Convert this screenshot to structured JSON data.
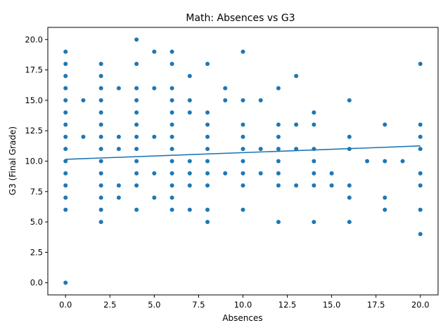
{
  "chart_data": {
    "type": "scatter",
    "title": "Math: Absences vs G3",
    "xlabel": "Absences",
    "ylabel": "G3 (Final Grade)",
    "xlim": [
      -1,
      21
    ],
    "ylim": [
      -1,
      21
    ],
    "xticks": [
      0,
      2.5,
      5,
      7.5,
      10,
      12.5,
      15,
      17.5,
      20
    ],
    "xtick_labels": [
      "0.0",
      "2.5",
      "5.0",
      "7.5",
      "10.0",
      "12.5",
      "15.0",
      "17.5",
      "20.0"
    ],
    "yticks": [
      0,
      2.5,
      5,
      7.5,
      10,
      12.5,
      15,
      17.5,
      20
    ],
    "ytick_labels": [
      "0.0",
      "2.5",
      "5.0",
      "7.5",
      "10.0",
      "12.5",
      "15.0",
      "17.5",
      "20.0"
    ],
    "grid": false,
    "marker_color": "#1f77b4",
    "line_color": "#1f77b4",
    "points": [
      [
        0,
        0
      ],
      [
        0,
        6
      ],
      [
        0,
        7
      ],
      [
        0,
        8
      ],
      [
        0,
        9
      ],
      [
        0,
        10
      ],
      [
        0,
        11
      ],
      [
        0,
        12
      ],
      [
        0,
        13
      ],
      [
        0,
        14
      ],
      [
        0,
        15
      ],
      [
        0,
        16
      ],
      [
        0,
        17
      ],
      [
        0,
        18
      ],
      [
        0,
        19
      ],
      [
        1,
        12
      ],
      [
        1,
        15
      ],
      [
        2,
        5
      ],
      [
        2,
        6
      ],
      [
        2,
        7
      ],
      [
        2,
        8
      ],
      [
        2,
        9
      ],
      [
        2,
        10
      ],
      [
        2,
        11
      ],
      [
        2,
        12
      ],
      [
        2,
        13
      ],
      [
        2,
        14
      ],
      [
        2,
        15
      ],
      [
        2,
        16
      ],
      [
        2,
        17
      ],
      [
        2,
        18
      ],
      [
        3,
        7
      ],
      [
        3,
        8
      ],
      [
        3,
        11
      ],
      [
        3,
        12
      ],
      [
        3,
        16
      ],
      [
        4,
        6
      ],
      [
        4,
        8
      ],
      [
        4,
        9
      ],
      [
        4,
        10
      ],
      [
        4,
        11
      ],
      [
        4,
        12
      ],
      [
        4,
        13
      ],
      [
        4,
        14
      ],
      [
        4,
        15
      ],
      [
        4,
        16
      ],
      [
        4,
        18
      ],
      [
        4,
        20
      ],
      [
        5,
        7
      ],
      [
        5,
        9
      ],
      [
        5,
        12
      ],
      [
        5,
        16
      ],
      [
        5,
        19
      ],
      [
        6,
        6
      ],
      [
        6,
        7
      ],
      [
        6,
        8
      ],
      [
        6,
        9
      ],
      [
        6,
        10
      ],
      [
        6,
        11
      ],
      [
        6,
        12
      ],
      [
        6,
        13
      ],
      [
        6,
        14
      ],
      [
        6,
        15
      ],
      [
        6,
        16
      ],
      [
        6,
        18
      ],
      [
        6,
        19
      ],
      [
        7,
        6
      ],
      [
        7,
        8
      ],
      [
        7,
        9
      ],
      [
        7,
        10
      ],
      [
        7,
        14
      ],
      [
        7,
        15
      ],
      [
        7,
        17
      ],
      [
        8,
        5
      ],
      [
        8,
        6
      ],
      [
        8,
        8
      ],
      [
        8,
        9
      ],
      [
        8,
        10
      ],
      [
        8,
        11
      ],
      [
        8,
        12
      ],
      [
        8,
        13
      ],
      [
        8,
        14
      ],
      [
        8,
        18
      ],
      [
        9,
        9
      ],
      [
        9,
        15
      ],
      [
        9,
        16
      ],
      [
        10,
        6
      ],
      [
        10,
        8
      ],
      [
        10,
        9
      ],
      [
        10,
        10
      ],
      [
        10,
        11
      ],
      [
        10,
        12
      ],
      [
        10,
        13
      ],
      [
        10,
        15
      ],
      [
        10,
        19
      ],
      [
        11,
        9
      ],
      [
        11,
        11
      ],
      [
        11,
        15
      ],
      [
        12,
        5
      ],
      [
        12,
        8
      ],
      [
        12,
        9
      ],
      [
        12,
        10
      ],
      [
        12,
        11
      ],
      [
        12,
        12
      ],
      [
        12,
        13
      ],
      [
        12,
        16
      ],
      [
        13,
        8
      ],
      [
        13,
        11
      ],
      [
        13,
        13
      ],
      [
        13,
        17
      ],
      [
        14,
        5
      ],
      [
        14,
        8
      ],
      [
        14,
        9
      ],
      [
        14,
        10
      ],
      [
        14,
        11
      ],
      [
        14,
        13
      ],
      [
        14,
        14
      ],
      [
        15,
        8
      ],
      [
        15,
        9
      ],
      [
        16,
        5
      ],
      [
        16,
        7
      ],
      [
        16,
        8
      ],
      [
        16,
        11
      ],
      [
        16,
        12
      ],
      [
        16,
        15
      ],
      [
        17,
        10
      ],
      [
        18,
        6
      ],
      [
        18,
        7
      ],
      [
        18,
        10
      ],
      [
        18,
        13
      ],
      [
        19,
        10
      ],
      [
        20,
        4
      ],
      [
        20,
        6
      ],
      [
        20,
        8
      ],
      [
        20,
        9
      ],
      [
        20,
        11
      ],
      [
        20,
        12
      ],
      [
        20,
        13
      ],
      [
        20,
        18
      ]
    ],
    "trend_line": {
      "x": [
        0,
        20
      ],
      "y": [
        10.15,
        11.25
      ]
    }
  }
}
